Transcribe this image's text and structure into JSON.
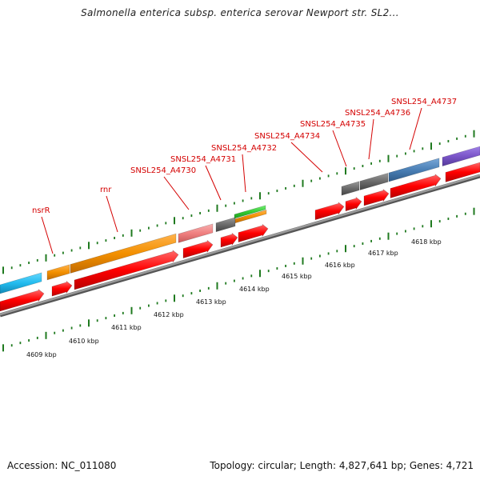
{
  "title": "Salmonella enterica subsp. enterica serovar Newport str. SL2...",
  "footer": {
    "accession": "Accession: NC_011080",
    "topology": "Topology: circular; Length: 4,827,641 bp; Genes: 4,721"
  },
  "gene_labels": [
    "nsrR",
    "rnr",
    "SNSL254_A4730",
    "SNSL254_A4731",
    "SNSL254_A4732",
    "SNSL254_A4734",
    "SNSL254_A4735",
    "SNSL254_A4736",
    "SNSL254_A4737"
  ],
  "kbp_labels": [
    "4609 kbp",
    "4610 kbp",
    "4611 kbp",
    "4612 kbp",
    "4613 kbp",
    "4614 kbp",
    "4615 kbp",
    "4616 kbp",
    "4617 kbp",
    "4618 kbp"
  ],
  "colors": {
    "label": "#d40000",
    "cds_forward": "#ff0000",
    "backbone": "#808080",
    "tick": "#1f7a1f",
    "cyan": "#22bbee",
    "orange": "#f39000",
    "pink": "#f08080",
    "gray": "#6b6b6b",
    "green": "#33cc33",
    "steel_blue": "#4a7fb5",
    "purple": "#7a55c8"
  }
}
